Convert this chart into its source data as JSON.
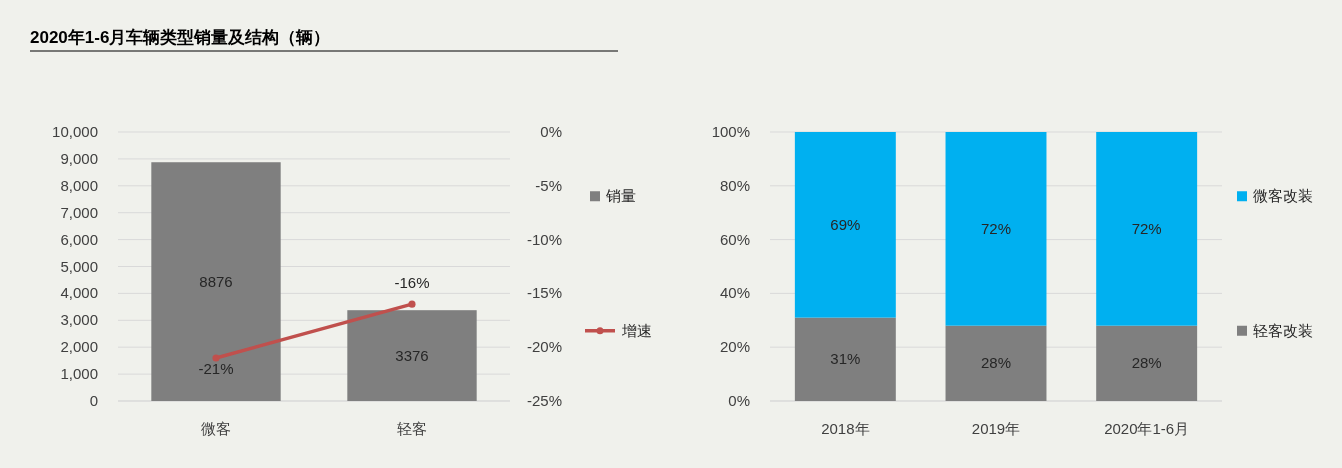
{
  "chart_data": [
    {
      "type": "bar",
      "title": "2020年1-6月车辆类型销量及结构（辆）",
      "categories": [
        "微客",
        "轻客"
      ],
      "series": [
        {
          "name": "销量",
          "color": "#7f7f7f",
          "values": [
            8876,
            3376
          ],
          "data_labels": true
        },
        {
          "name": "增速",
          "type": "line",
          "axis": "y2",
          "color": "#c0504d",
          "values": [
            -21,
            -16
          ],
          "value_labels": [
            "-21%",
            "-16%"
          ],
          "marker": "circle",
          "line_style": "solid"
        }
      ],
      "ylim": [
        0,
        10000
      ],
      "yticks": [
        0,
        {
          "value": 1000,
          "label": "1,000"
        },
        {
          "value": 2000,
          "label": "2,000"
        },
        {
          "value": 3000,
          "label": "3,000"
        },
        {
          "value": 4000,
          "label": "4,000"
        },
        {
          "value": 5000,
          "label": "5,000"
        },
        {
          "value": 6000,
          "label": "6,000"
        },
        {
          "value": 7000,
          "label": "7,000"
        },
        {
          "value": 8000,
          "label": "8,000"
        },
        {
          "value": 9000,
          "label": "9,000"
        },
        {
          "value": 10000,
          "label": "10,000"
        }
      ],
      "y2lim": [
        -25,
        0
      ],
      "y2ticks": [
        {
          "value": -25,
          "label": "-25%"
        },
        {
          "value": -20,
          "label": "-20%"
        },
        {
          "value": -15,
          "label": "-15%"
        },
        {
          "value": -10,
          "label": "-10%"
        },
        {
          "value": -5,
          "label": "-5%"
        },
        {
          "value": 0,
          "label": "0%"
        }
      ],
      "grid": "y",
      "legend": "right"
    },
    {
      "type": "bar",
      "stacked": true,
      "categories": [
        "2018年",
        "2019年",
        "2020年1-6月"
      ],
      "series": [
        {
          "name": "轻客改装",
          "color": "#7f7f7f",
          "values": [
            31,
            28,
            28
          ],
          "value_labels": [
            "31%",
            "28%",
            "28%"
          ]
        },
        {
          "name": "微客改装",
          "color": "#00b0f0",
          "values": [
            69,
            72,
            72
          ],
          "value_labels": [
            "69%",
            "72%",
            "72%"
          ]
        }
      ],
      "ylim": [
        0,
        100
      ],
      "yticks": [
        {
          "value": 0,
          "label": "0%"
        },
        {
          "value": 20,
          "label": "20%"
        },
        {
          "value": 40,
          "label": "40%"
        },
        {
          "value": 60,
          "label": "60%"
        },
        {
          "value": 80,
          "label": "80%"
        },
        {
          "value": 100,
          "label": "100%"
        }
      ],
      "grid": "y",
      "legend": "right"
    }
  ]
}
